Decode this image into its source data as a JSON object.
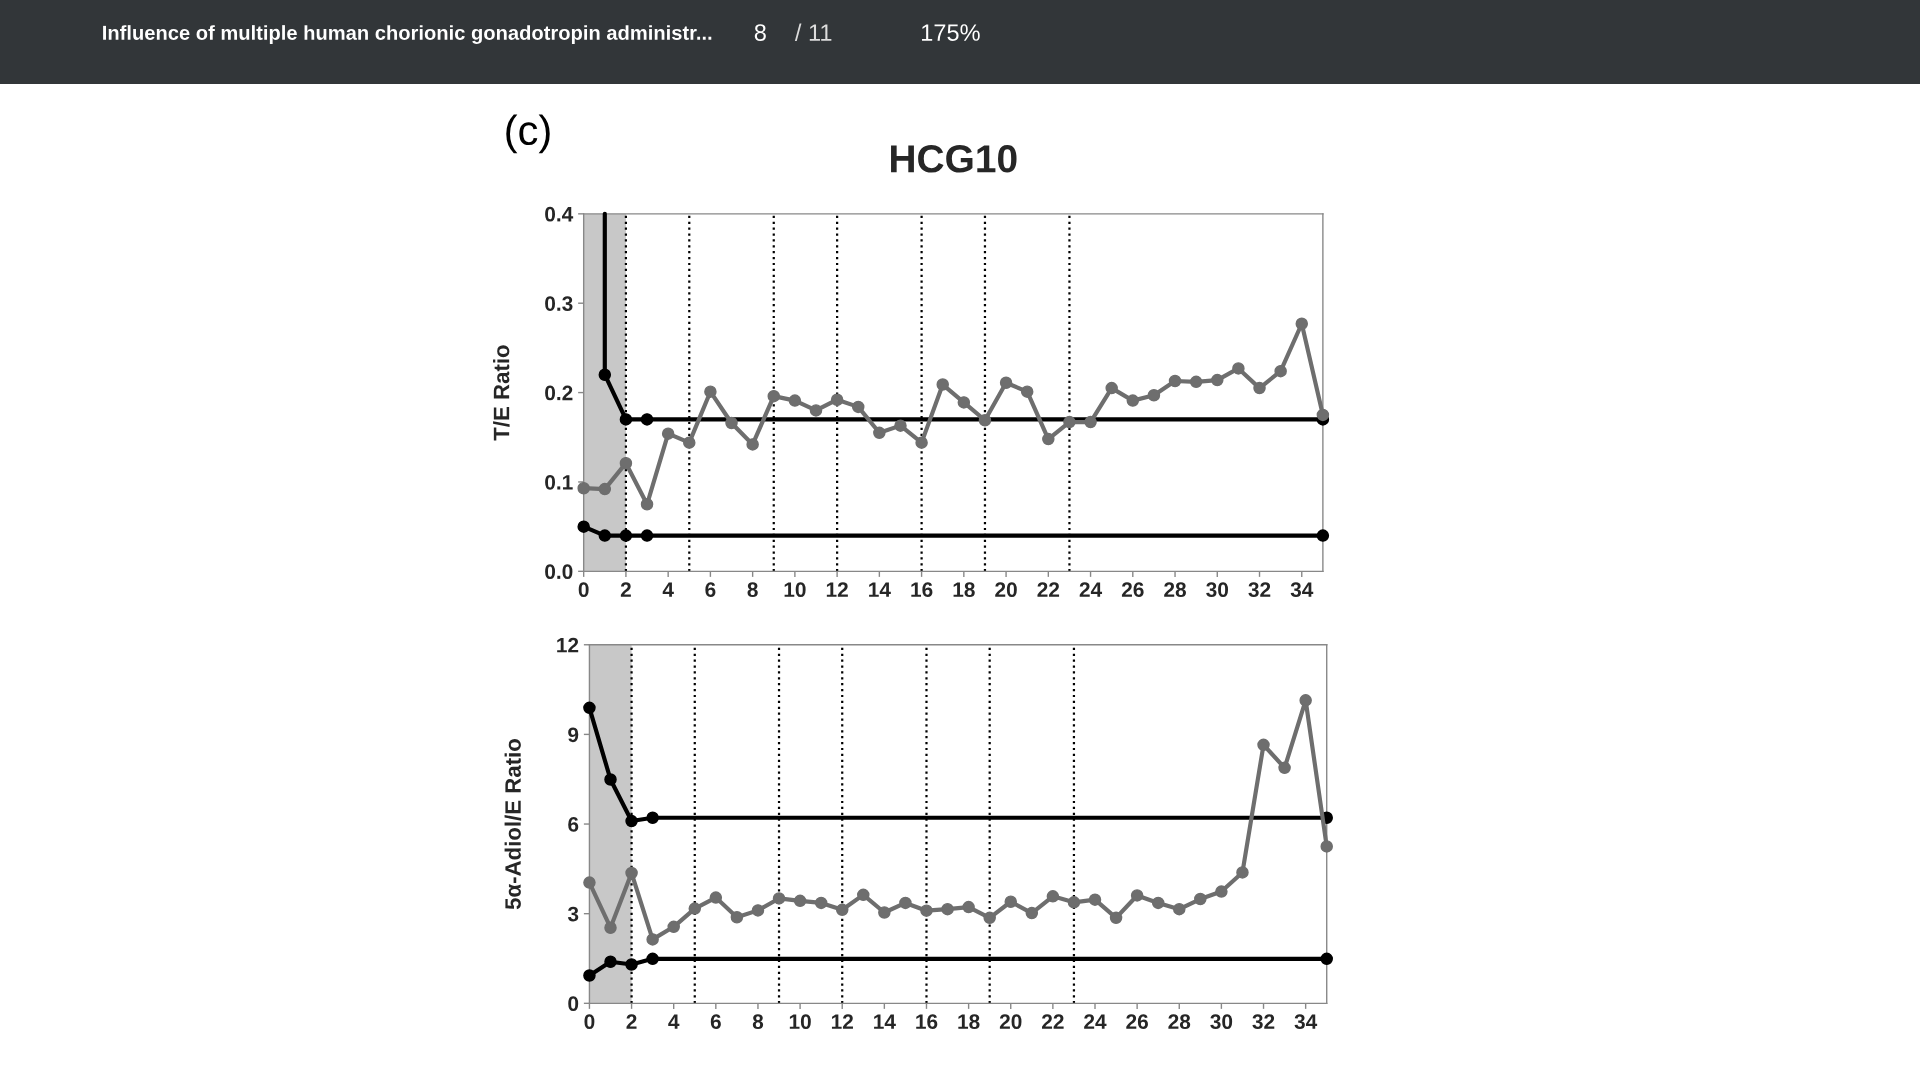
{
  "chart_data": [
    {
      "type": "line",
      "title": "HCG10",
      "ylabel": "T/E Ratio",
      "annotations": [
        "Influence of multiple human chorionic gonadotropin administr...",
        "8",
        "/ 11",
        "175%",
        "(c)"
      ],
      "xlim": [
        0,
        35
      ],
      "xticks": [
        0,
        2,
        4,
        6,
        8,
        10,
        12,
        14,
        16,
        18,
        20,
        22,
        24,
        26,
        28,
        30,
        32,
        34
      ],
      "ylim": [
        0,
        0.4
      ],
      "yticks": [
        {
          "value": 0,
          "label": "0.0"
        },
        0.1,
        0.2,
        0.3,
        0.4
      ],
      "grid": false,
      "legend": false,
      "series": [
        {
          "color": "#6e6e6e",
          "marker": "circle",
          "x": [
            0,
            1,
            2,
            3,
            4,
            5,
            6,
            7,
            8,
            9,
            10,
            11,
            12,
            13,
            14,
            15,
            16,
            17,
            18,
            19,
            20,
            21,
            22,
            23,
            24,
            25,
            26,
            27,
            28,
            29,
            30,
            31,
            32,
            33,
            34,
            35
          ],
          "values": [
            0.093,
            0.092,
            0.121,
            0.075,
            0.154,
            0.144,
            0.201,
            0.166,
            0.142,
            0.196,
            0.191,
            0.18,
            0.192,
            0.184,
            0.155,
            0.163,
            0.144,
            0.209,
            0.189,
            0.169,
            0.211,
            0.201,
            0.148,
            0.167,
            0.167,
            0.205,
            0.191,
            0.197,
            0.213,
            0.212,
            0.214,
            0.227,
            0.205,
            0.224,
            0.277,
            0.175
          ]
        },
        {
          "color": "#000000",
          "x": [
            1,
            1
          ],
          "values": [
            0.4,
            0.22
          ]
        },
        {
          "color": "#000000",
          "marker": "circle",
          "x": [
            1,
            2,
            3,
            35
          ],
          "values": [
            0.22,
            0.17,
            0.17,
            0.17
          ]
        },
        {
          "color": "#000000",
          "marker": "circle",
          "x": [
            0,
            1,
            2,
            3,
            35
          ],
          "values": [
            0.05,
            0.04,
            0.04,
            0.04,
            0.04
          ]
        }
      ],
      "bands": [
        {
          "axis": "x",
          "from": 0,
          "to": 2,
          "color": "#c8c8c8"
        }
      ],
      "ref_lines": [
        {
          "axis": "x",
          "value": 2,
          "line_style": "dotted"
        },
        {
          "axis": "x",
          "value": 5,
          "line_style": "dotted"
        },
        {
          "axis": "x",
          "value": 9,
          "line_style": "dotted"
        },
        {
          "axis": "x",
          "value": 12,
          "line_style": "dotted"
        },
        {
          "axis": "x",
          "value": 16,
          "line_style": "dotted"
        },
        {
          "axis": "x",
          "value": 19,
          "line_style": "dotted"
        },
        {
          "axis": "x",
          "value": 23,
          "line_style": "dotted"
        }
      ]
    },
    {
      "type": "line",
      "ylabel": "5α-Adiol/E Ratio",
      "xlim": [
        0,
        35
      ],
      "xticks": [
        0,
        2,
        4,
        6,
        8,
        10,
        12,
        14,
        16,
        18,
        20,
        22,
        24,
        26,
        28,
        30,
        32,
        34
      ],
      "ylim": [
        0,
        12
      ],
      "yticks": [
        0,
        3,
        6,
        9,
        12
      ],
      "grid": false,
      "legend": false,
      "series": [
        {
          "color": "#6e6e6e",
          "marker": "circle",
          "x": [
            0,
            1,
            2,
            3,
            4,
            5,
            6,
            7,
            8,
            9,
            10,
            11,
            12,
            13,
            14,
            15,
            16,
            17,
            18,
            19,
            20,
            21,
            22,
            23,
            24,
            25,
            26,
            27,
            28,
            29,
            30,
            31,
            32,
            33,
            34,
            35
          ],
          "values": [
            4.04,
            2.53,
            4.36,
            2.14,
            2.56,
            3.17,
            3.54,
            2.88,
            3.11,
            3.51,
            3.43,
            3.36,
            3.13,
            3.63,
            3.04,
            3.36,
            3.1,
            3.15,
            3.22,
            2.86,
            3.4,
            3.02,
            3.58,
            3.38,
            3.47,
            2.86,
            3.61,
            3.36,
            3.15,
            3.49,
            3.74,
            4.38,
            8.65,
            7.88,
            10.14,
            5.25
          ]
        },
        {
          "color": "#000000",
          "marker": "circle",
          "x": [
            0,
            1,
            2,
            3,
            35
          ],
          "values": [
            9.89,
            7.49,
            6.1,
            6.21,
            6.21
          ]
        },
        {
          "color": "#000000",
          "marker": "circle",
          "x": [
            0,
            1,
            2,
            3,
            35
          ],
          "values": [
            0.93,
            1.39,
            1.3,
            1.49,
            1.49
          ]
        }
      ],
      "bands": [
        {
          "axis": "x",
          "from": 0,
          "to": 2,
          "color": "#c8c8c8"
        }
      ],
      "ref_lines": [
        {
          "axis": "x",
          "value": 2,
          "line_style": "dotted"
        },
        {
          "axis": "x",
          "value": 5,
          "line_style": "dotted"
        },
        {
          "axis": "x",
          "value": 9,
          "line_style": "dotted"
        },
        {
          "axis": "x",
          "value": 12,
          "line_style": "dotted"
        },
        {
          "axis": "x",
          "value": 16,
          "line_style": "dotted"
        },
        {
          "axis": "x",
          "value": 19,
          "line_style": "dotted"
        },
        {
          "axis": "x",
          "value": 23,
          "line_style": "dotted"
        }
      ]
    }
  ]
}
